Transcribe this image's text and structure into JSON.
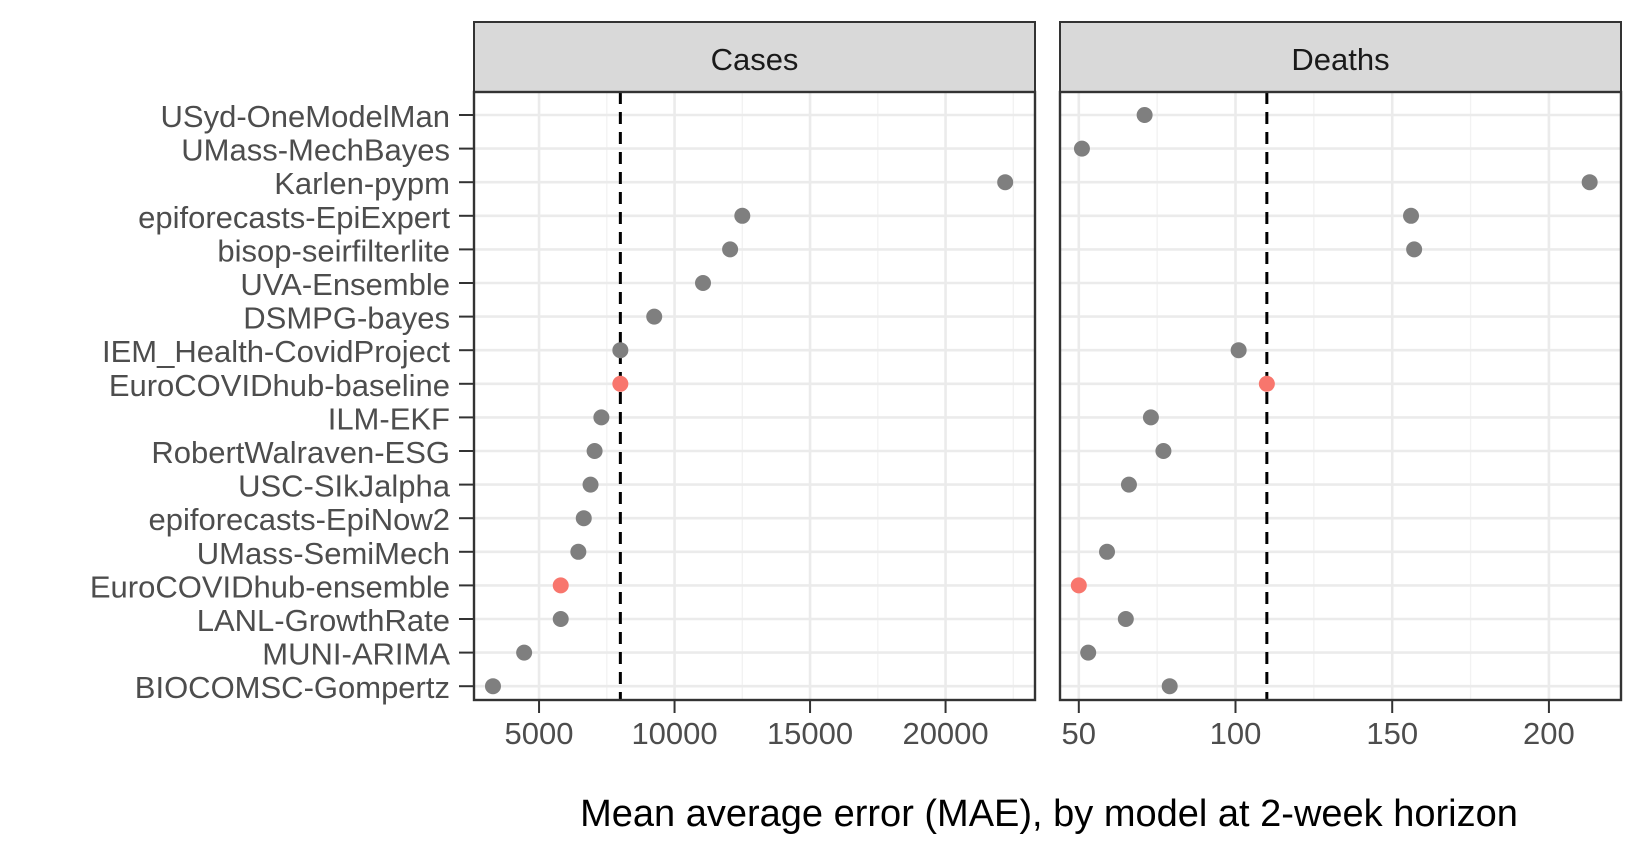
{
  "chart_data": {
    "type": "scatter",
    "categories": [
      "USyd-OneModelMan",
      "UMass-MechBayes",
      "Karlen-pypm",
      "epiforecasts-EpiExpert",
      "bisop-seirfilterlite",
      "UVA-Ensemble",
      "DSMPG-bayes",
      "IEM_Health-CovidProject",
      "EuroCOVIDhub-baseline",
      "ILM-EKF",
      "RobertWalraven-ESG",
      "USC-SIkJalpha",
      "epiforecasts-EpiNow2",
      "UMass-SemiMech",
      "EuroCOVIDhub-ensemble",
      "LANL-GrowthRate",
      "MUNI-ARIMA",
      "BIOCOMSC-Gompertz"
    ],
    "highlight_models": [
      "EuroCOVIDhub-baseline",
      "EuroCOVIDhub-ensemble"
    ],
    "colors": {
      "default": "#7f7f7f",
      "highlight": "#f8766d",
      "strip": "#d9d9d9",
      "grid": "#ebebeb",
      "border": "#333333"
    },
    "xlabel": "Mean average error (MAE), by model at 2-week horizon",
    "panels": [
      {
        "title": "Cases",
        "xlim": [
          2600,
          23300
        ],
        "ticks": [
          5000,
          10000,
          15000,
          20000
        ],
        "tick_labels": [
          "5000",
          "10000",
          "15000",
          "20000"
        ],
        "reference_line": 8000,
        "values": [
          null,
          null,
          22200,
          12500,
          12050,
          11050,
          9250,
          8000,
          8000,
          7300,
          7050,
          6900,
          6650,
          6450,
          5800,
          5800,
          4450,
          3300
        ]
      },
      {
        "title": "Deaths",
        "xlim": [
          44,
          223
        ],
        "ticks": [
          50,
          100,
          150,
          200
        ],
        "tick_labels": [
          "50",
          "100",
          "150",
          "200"
        ],
        "reference_line": 110,
        "values": [
          71,
          51,
          213,
          156,
          157,
          null,
          null,
          101,
          110,
          73,
          77,
          66,
          null,
          59,
          50,
          65,
          53,
          79
        ]
      }
    ]
  }
}
